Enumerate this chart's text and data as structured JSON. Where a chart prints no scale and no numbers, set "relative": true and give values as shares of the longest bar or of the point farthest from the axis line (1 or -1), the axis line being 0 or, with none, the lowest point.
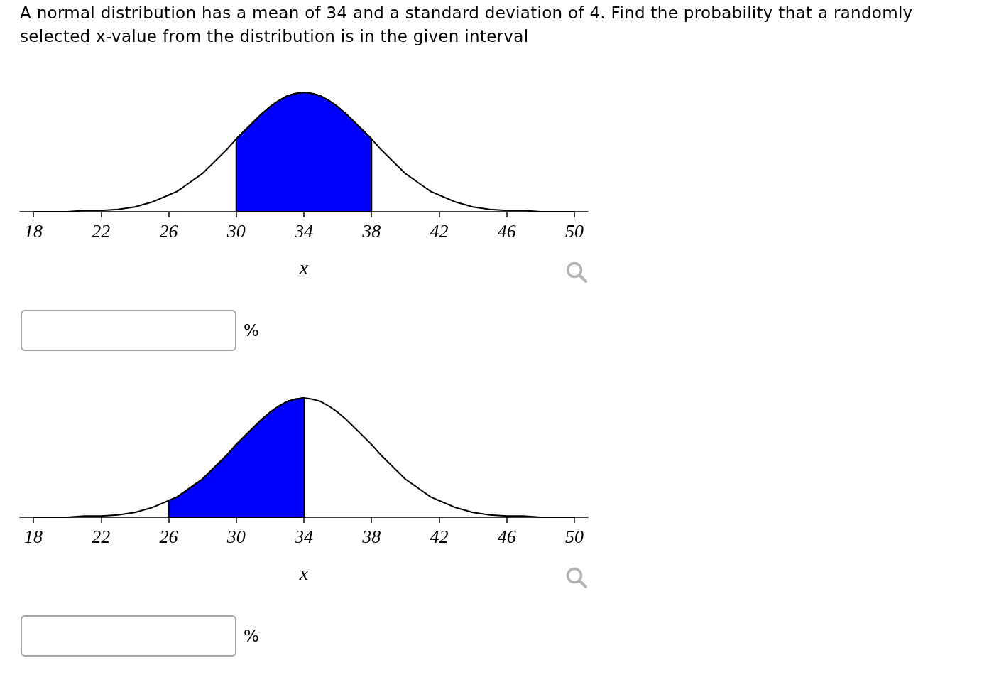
{
  "chart_data": [
    {
      "type": "line",
      "title": "A normal distribution has a mean of 34 and a standard deviation of 4. Find the probability that a randomly selected x-value from the distribution is in the given interval",
      "xlabel": "x",
      "relative": true,
      "xlim": [
        17.2,
        50.8
      ],
      "xticks": [
        18,
        22,
        26,
        30,
        34,
        38,
        42,
        46,
        50
      ],
      "annotations": [
        "%"
      ],
      "series": [
        {
          "color": "#000000",
          "x": [
            18,
            19,
            20,
            21,
            22,
            23,
            24,
            25,
            26,
            26.5,
            27,
            27.5,
            28,
            28.5,
            29,
            29.5,
            30,
            30.5,
            31,
            31.5,
            32,
            32.5,
            33,
            33.5,
            34,
            34.5,
            35,
            35.5,
            36,
            36.5,
            37,
            37.5,
            38,
            38.5,
            39,
            39.5,
            40,
            40.5,
            41,
            41.5,
            42,
            43,
            44,
            45,
            46,
            47,
            48,
            49,
            50
          ],
          "values": [
            0,
            0,
            0,
            0.01,
            0.01,
            0.02,
            0.04,
            0.08,
            0.14,
            0.17,
            0.22,
            0.27,
            0.32,
            0.39,
            0.46,
            0.53,
            0.61,
            0.68,
            0.75,
            0.82,
            0.88,
            0.93,
            0.97,
            0.99,
            1,
            0.99,
            0.97,
            0.93,
            0.88,
            0.82,
            0.75,
            0.68,
            0.61,
            0.53,
            0.46,
            0.39,
            0.32,
            0.27,
            0.22,
            0.17,
            0.14,
            0.08,
            0.04,
            0.02,
            0.01,
            0.01,
            0,
            0,
            0
          ]
        },
        {
          "type": "area",
          "color": "#0000ff",
          "x": [
            30,
            30.5,
            31,
            31.5,
            32,
            32.5,
            33,
            33.5,
            34,
            34.5,
            35,
            35.5,
            36,
            36.5,
            37,
            37.5,
            38
          ],
          "values": [
            0.61,
            0.68,
            0.75,
            0.82,
            0.88,
            0.93,
            0.97,
            0.99,
            1,
            0.99,
            0.97,
            0.93,
            0.88,
            0.82,
            0.75,
            0.68,
            0.61
          ]
        }
      ]
    },
    {
      "type": "line",
      "xlabel": "x",
      "relative": true,
      "xlim": [
        17.2,
        50.8
      ],
      "xticks": [
        18,
        22,
        26,
        30,
        34,
        38,
        42,
        46,
        50
      ],
      "annotations": [
        "%"
      ],
      "series": [
        {
          "color": "#000000",
          "x": [
            18,
            19,
            20,
            21,
            22,
            23,
            24,
            25,
            26,
            26.5,
            27,
            27.5,
            28,
            28.5,
            29,
            29.5,
            30,
            30.5,
            31,
            31.5,
            32,
            32.5,
            33,
            33.5,
            34,
            34.5,
            35,
            35.5,
            36,
            36.5,
            37,
            37.5,
            38,
            38.5,
            39,
            39.5,
            40,
            40.5,
            41,
            41.5,
            42,
            43,
            44,
            45,
            46,
            47,
            48,
            49,
            50
          ],
          "values": [
            0,
            0,
            0,
            0.01,
            0.01,
            0.02,
            0.04,
            0.08,
            0.14,
            0.17,
            0.22,
            0.27,
            0.32,
            0.39,
            0.46,
            0.53,
            0.61,
            0.68,
            0.75,
            0.82,
            0.88,
            0.93,
            0.97,
            0.99,
            1,
            0.99,
            0.97,
            0.93,
            0.88,
            0.82,
            0.75,
            0.68,
            0.61,
            0.53,
            0.46,
            0.39,
            0.32,
            0.27,
            0.22,
            0.17,
            0.14,
            0.08,
            0.04,
            0.02,
            0.01,
            0.01,
            0,
            0,
            0
          ]
        },
        {
          "type": "area",
          "color": "#0000ff",
          "x": [
            26,
            26.5,
            27,
            27.5,
            28,
            28.5,
            29,
            29.5,
            30,
            30.5,
            31,
            31.5,
            32,
            32.5,
            33,
            33.5,
            34
          ],
          "values": [
            0.14,
            0.17,
            0.22,
            0.27,
            0.32,
            0.39,
            0.46,
            0.53,
            0.61,
            0.68,
            0.75,
            0.82,
            0.88,
            0.93,
            0.97,
            0.99,
            1
          ]
        }
      ]
    }
  ]
}
